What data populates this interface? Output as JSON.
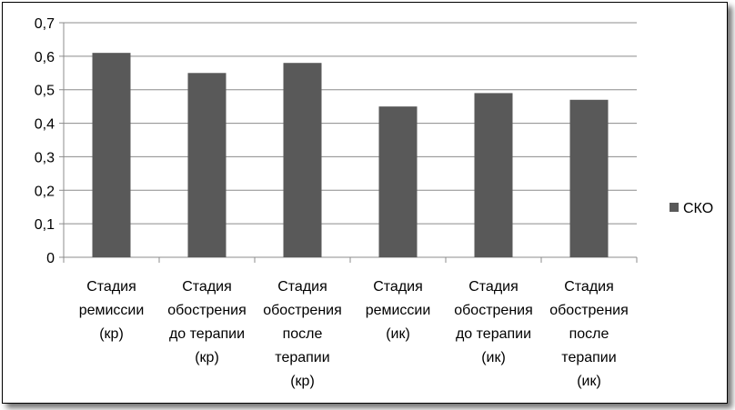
{
  "chart_data": {
    "type": "bar",
    "categories": [
      [
        "Стадия",
        "ремиссии",
        "(кр)"
      ],
      [
        "Стадия",
        "обострения",
        "до терапии",
        "(кр)"
      ],
      [
        "Стадия",
        "обострения",
        "после",
        "терапии",
        "(кр)"
      ],
      [
        "Стадия",
        "ремиссии",
        "(ик)"
      ],
      [
        "Стадия",
        "обострения",
        "до терапии",
        "(ик)"
      ],
      [
        "Стадия",
        "обострения",
        "после",
        "терапии",
        "(ик)"
      ]
    ],
    "series": [
      {
        "name": "СКО",
        "values": [
          0.61,
          0.55,
          0.58,
          0.45,
          0.49,
          0.47
        ],
        "color": "#595959"
      }
    ],
    "y_ticks": [
      "0",
      "0,1",
      "0,2",
      "0,3",
      "0,4",
      "0,5",
      "0,6",
      "0,7"
    ],
    "ylim": [
      0,
      0.7
    ],
    "grid": true,
    "legend_position": "right"
  }
}
